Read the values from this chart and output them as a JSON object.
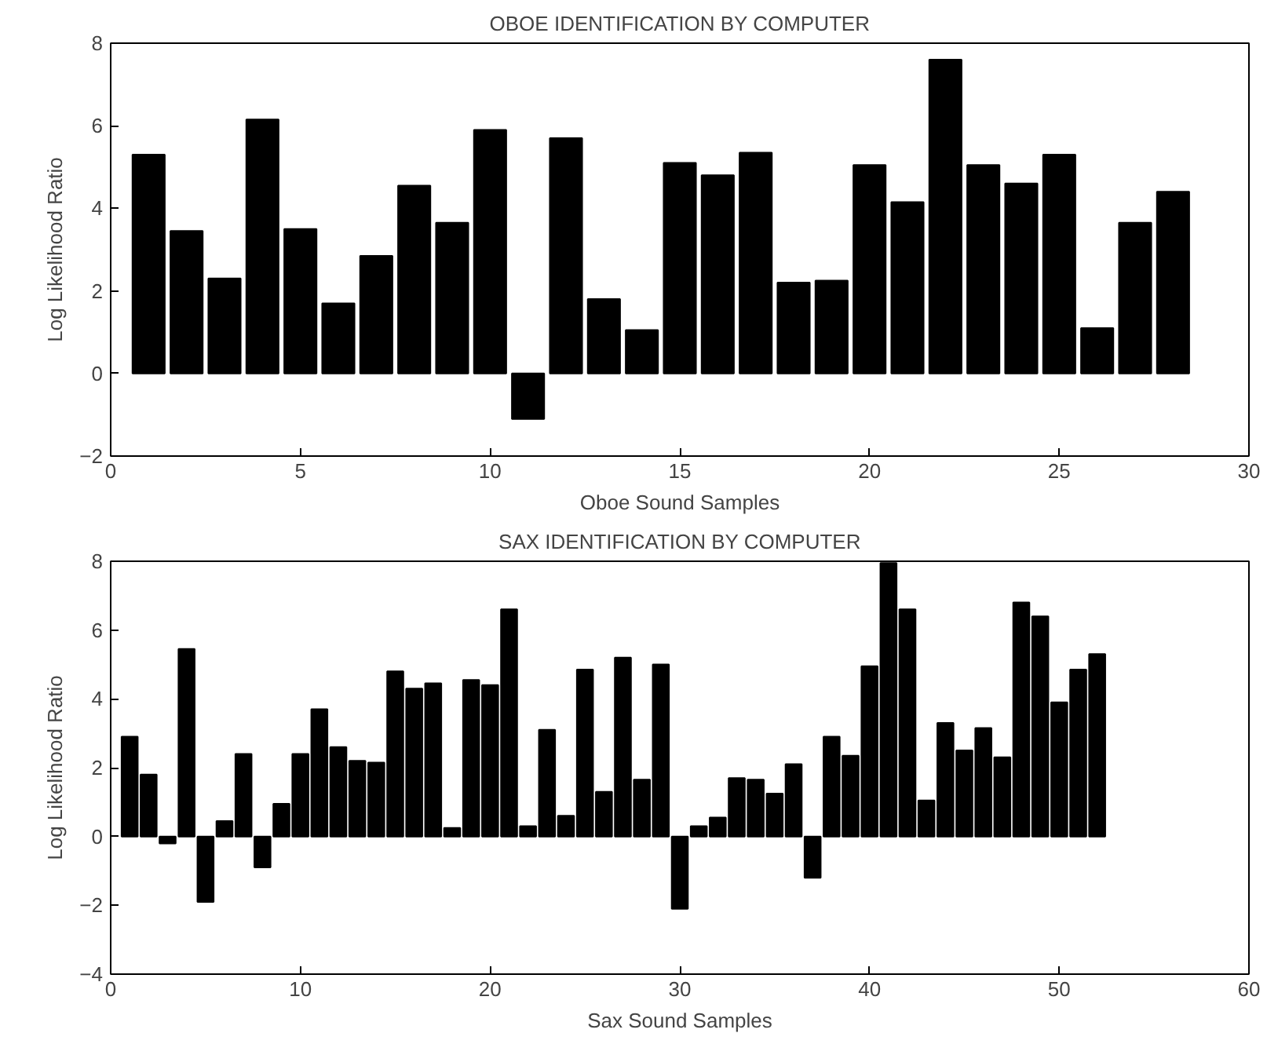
{
  "chart_data": [
    {
      "type": "bar",
      "title": "OBOE IDENTIFICATION BY COMPUTER",
      "xlabel": "Oboe Sound Samples",
      "ylabel": "Log Likelihood Ratio",
      "x": [
        1,
        2,
        3,
        4,
        5,
        6,
        7,
        8,
        9,
        10,
        11,
        12,
        13,
        14,
        15,
        16,
        17,
        18,
        19,
        20,
        21,
        22,
        23,
        24,
        25,
        26,
        27,
        28
      ],
      "series": [
        {
          "color": "#000000",
          "values": [
            5.3,
            3.45,
            2.3,
            6.15,
            3.5,
            1.7,
            2.85,
            4.55,
            3.65,
            5.9,
            -1.1,
            5.7,
            1.8,
            1.05,
            5.1,
            4.8,
            5.35,
            2.2,
            2.25,
            5.05,
            4.15,
            7.6,
            5.05,
            4.6,
            5.3,
            1.1,
            3.65,
            4.4
          ]
        }
      ],
      "xlim": [
        0,
        30
      ],
      "xticks": [
        0,
        5,
        10,
        15,
        20,
        25,
        30
      ],
      "ylim": [
        -2,
        8
      ],
      "yticks": [
        -2,
        0,
        2,
        4,
        6,
        8
      ],
      "grid": false
    },
    {
      "type": "bar",
      "title": "SAX IDENTIFICATION BY COMPUTER",
      "xlabel": "Sax Sound Samples",
      "ylabel": "Log Likelihood Ratio",
      "x": [
        1,
        2,
        3,
        4,
        5,
        6,
        7,
        8,
        9,
        10,
        11,
        12,
        13,
        14,
        15,
        16,
        17,
        18,
        19,
        20,
        21,
        22,
        23,
        24,
        25,
        26,
        27,
        28,
        29,
        30,
        31,
        32,
        33,
        34,
        35,
        36,
        37,
        38,
        39,
        40,
        41,
        42,
        43,
        44,
        45,
        46,
        47,
        48,
        49,
        50,
        51,
        52
      ],
      "series": [
        {
          "color": "#000000",
          "values": [
            2.9,
            1.8,
            -0.2,
            5.45,
            -1.9,
            0.45,
            2.4,
            -0.9,
            0.95,
            2.4,
            3.7,
            2.6,
            2.2,
            2.15,
            4.8,
            4.3,
            4.45,
            0.25,
            4.55,
            4.4,
            6.6,
            0.3,
            3.1,
            0.6,
            4.85,
            1.3,
            5.2,
            1.65,
            5.0,
            -2.1,
            0.3,
            0.55,
            1.7,
            1.65,
            1.25,
            2.1,
            -1.2,
            2.9,
            2.35,
            4.95,
            7.95,
            6.6,
            1.05,
            3.3,
            2.5,
            3.15,
            2.3,
            6.8,
            6.4,
            3.9,
            4.85,
            5.3
          ]
        }
      ],
      "xlim": [
        0,
        60
      ],
      "xticks": [
        0,
        10,
        20,
        30,
        40,
        50,
        60
      ],
      "ylim": [
        -4,
        8
      ],
      "yticks": [
        -4,
        -2,
        0,
        2,
        4,
        6,
        8
      ],
      "grid": false
    }
  ]
}
